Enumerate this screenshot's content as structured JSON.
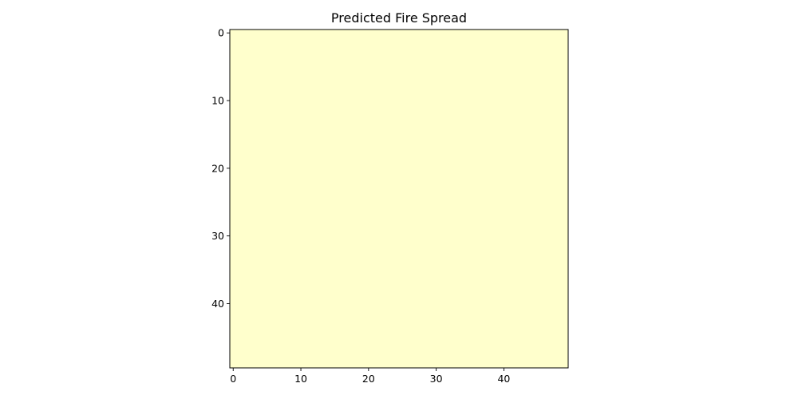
{
  "chart_data": {
    "type": "heatmap",
    "title": "Predicted Fire Spread",
    "xlabel": "",
    "ylabel": "",
    "grid_size": [
      50,
      50
    ],
    "xlim": [
      -0.5,
      49.5
    ],
    "ylim": [
      49.5,
      -0.5
    ],
    "x_ticks": [
      0,
      10,
      20,
      30,
      40
    ],
    "y_ticks": [
      0,
      10,
      20,
      30,
      40
    ],
    "x_tick_labels": [
      "0",
      "10",
      "20",
      "30",
      "40"
    ],
    "y_tick_labels": [
      "0",
      "10",
      "20",
      "30",
      "40"
    ],
    "uniform_value": 0,
    "colormap": "YlOrRd",
    "cell_color": "#ffffcc",
    "grid": false,
    "legend": "none"
  }
}
